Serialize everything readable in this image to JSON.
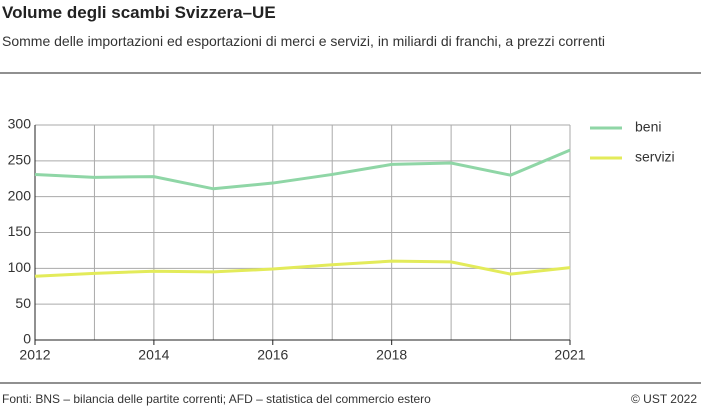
{
  "chart_data": {
    "type": "line",
    "title": "Volume degli scambi Svizzera–UE",
    "subtitle": "Somme delle importazioni ed esportazioni di merci e servizi, in miliardi di franchi, a prezzi correnti",
    "x": [
      2012,
      2013,
      2014,
      2015,
      2016,
      2017,
      2018,
      2019,
      2020,
      2021
    ],
    "series": [
      {
        "name": "beni",
        "color": "#8fd6a6",
        "values": [
          231,
          227,
          228,
          211,
          219,
          231,
          245,
          247,
          230,
          265
        ]
      },
      {
        "name": "servizi",
        "color": "#e3eb5a",
        "values": [
          89,
          93,
          96,
          95,
          99,
          105,
          110,
          109,
          92,
          101
        ]
      }
    ],
    "xlim": [
      2012,
      2021
    ],
    "xticks": [
      2012,
      2014,
      2016,
      2018,
      2021
    ],
    "ylim": [
      0,
      300
    ],
    "yticks": [
      0,
      50,
      100,
      150,
      200,
      250,
      300
    ],
    "grid": true,
    "legend": "right",
    "source": "Fonti: BNS – bilancia delle partite correnti; AFD – statistica del commercio estero",
    "copyright": "© UST 2022"
  }
}
